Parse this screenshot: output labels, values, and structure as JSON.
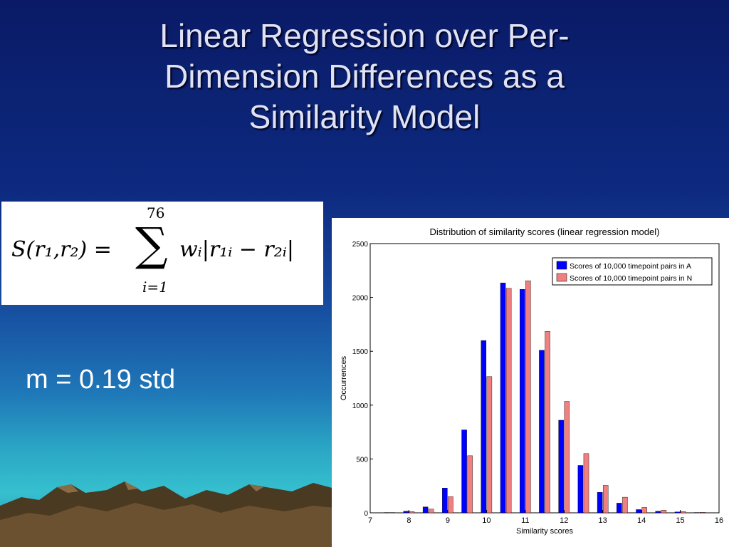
{
  "slide": {
    "title": "Linear Regression over Per-Dimension Differences as a Similarity Model",
    "title_lines": [
      "Linear Regression over Per-",
      "Dimension Differences as a",
      "Similarity Model"
    ],
    "m_text": "m = 0.19 std"
  },
  "formula": {
    "lhs": "S(r₁,r₂) =",
    "upper": "76",
    "sigma": "∑",
    "lower": "i=1",
    "summand": "wᵢ|r₁ᵢ − r₂ᵢ|"
  },
  "chart_data": {
    "type": "bar",
    "title": "Distribution of similarity scores (linear regression model)",
    "xlabel": "Similarity scores",
    "ylabel": "Occurrences",
    "xlim": [
      7,
      16
    ],
    "ylim": [
      0,
      2500
    ],
    "xticks": [
      7,
      8,
      9,
      10,
      11,
      12,
      13,
      14,
      15,
      16
    ],
    "yticks": [
      0,
      500,
      1000,
      1500,
      2000,
      2500
    ],
    "legend_position": "top-right",
    "x": [
      7.5,
      8.0,
      8.5,
      9.0,
      9.5,
      10.0,
      10.5,
      11.0,
      11.5,
      12.0,
      12.5,
      13.0,
      13.5,
      14.0,
      14.5,
      15.0,
      15.5
    ],
    "series": [
      {
        "name": "Scores of 10,000 timepoint pairs in A",
        "color": "#0000ff",
        "values": [
          3,
          15,
          55,
          230,
          770,
          1600,
          2135,
          2075,
          1510,
          860,
          440,
          190,
          90,
          30,
          15,
          8,
          3
        ]
      },
      {
        "name": "Scores of 10,000 timepoint pairs in N",
        "color": "#f08080",
        "values": [
          3,
          12,
          35,
          150,
          530,
          1265,
          2085,
          2155,
          1685,
          1035,
          550,
          255,
          145,
          50,
          25,
          12,
          5
        ]
      }
    ]
  }
}
